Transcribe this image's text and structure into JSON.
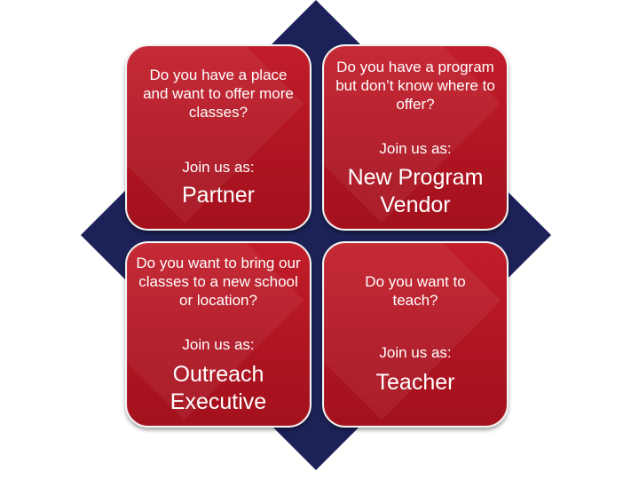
{
  "colors": {
    "diamond": "#1c2257",
    "box": "#b3162a",
    "text": "#ffffff"
  },
  "cards": {
    "partner": {
      "question": "Do you have a place and want to offer more classes?",
      "join": "Join us as:",
      "role": "Partner"
    },
    "vendor": {
      "question": "Do you have a program but don’t know where to offer?",
      "join": "Join us as:",
      "role": "New Program Vendor"
    },
    "outreach": {
      "question": "Do you want to bring our classes to a new school or location?",
      "join": "Join us as:",
      "role": "Outreach Executive"
    },
    "teacher": {
      "question": "Do you want to teach?",
      "join": "Join us as:",
      "role": "Teacher"
    }
  }
}
